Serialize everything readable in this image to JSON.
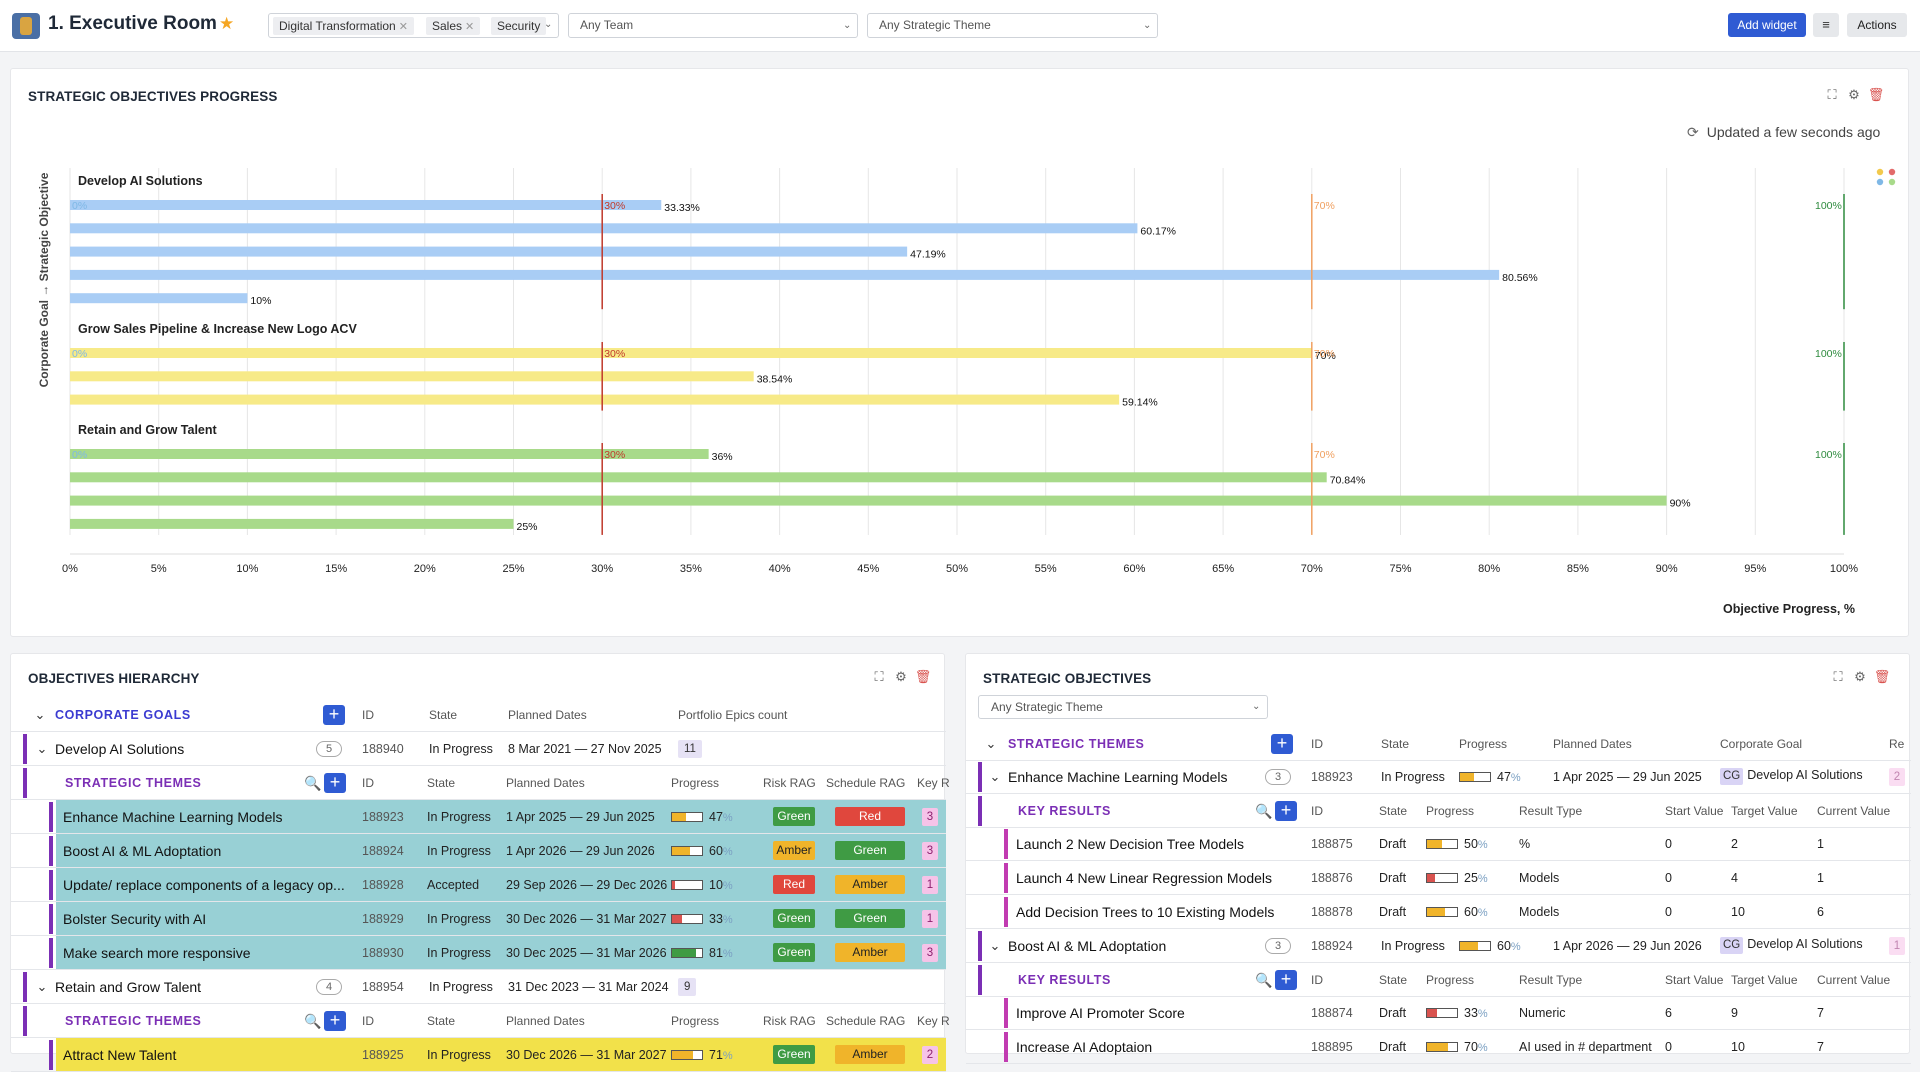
{
  "header": {
    "title": "1. Executive Room",
    "tags": [
      "Digital Transformation",
      "Sales",
      "Security"
    ],
    "team_select": "Any Team",
    "theme_select": "Any Strategic Theme",
    "add_widget": "Add widget",
    "actions": "Actions",
    "colors": {
      "primary": "#2f5bd3",
      "star": "#f5a623"
    }
  },
  "progress_widget": {
    "title": "STRATEGIC OBJECTIVES PROGRESS",
    "updated": "Updated a few seconds ago"
  },
  "chart_data": {
    "type": "bar",
    "orientation": "horizontal",
    "xlabel": "Objective Progress, %",
    "ylabel": "Corporate Goal → Strategic Objective",
    "xlim": [
      0,
      100
    ],
    "xticks": [
      0,
      5,
      10,
      15,
      20,
      25,
      30,
      35,
      40,
      45,
      50,
      55,
      60,
      65,
      70,
      75,
      80,
      85,
      90,
      95,
      100
    ],
    "xtick_labels": [
      "0%",
      "5%",
      "10%",
      "15%",
      "20%",
      "25%",
      "30%",
      "35%",
      "40%",
      "45%",
      "50%",
      "55%",
      "60%",
      "65%",
      "70%",
      "75%",
      "80%",
      "85%",
      "90%",
      "95%",
      "100%"
    ],
    "reference_lines": [
      {
        "value": 0,
        "label": "0%",
        "color": "#7fb8e6"
      },
      {
        "value": 30,
        "label": "30%",
        "color": "#c0392b"
      },
      {
        "value": 70,
        "label": "70%",
        "color": "#f0a060"
      },
      {
        "value": 100,
        "label": "100%",
        "color": "#2e8b3e"
      }
    ],
    "grid": true,
    "groups": [
      {
        "name": "Develop AI Solutions",
        "color": "#a9cdf5",
        "values": [
          33.33,
          60.17,
          47.19,
          80.56,
          10
        ],
        "labels": [
          "33.33%",
          "60.17%",
          "47.19%",
          "80.56%",
          "10%"
        ]
      },
      {
        "name": "Grow Sales Pipeline & Increase New Logo ACV",
        "color": "#f7ea88",
        "values": [
          70,
          38.54,
          59.14
        ],
        "labels": [
          "70%",
          "38.54%",
          "59.14%"
        ]
      },
      {
        "name": "Retain and Grow Talent",
        "color": "#a8da8a",
        "values": [
          36,
          70.84,
          90,
          25
        ],
        "labels": [
          "36%",
          "70.84%",
          "90%",
          "25%"
        ]
      }
    ]
  },
  "hierarchy": {
    "title": "OBJECTIVES HIERARCHY",
    "corporate_goals_label": "CORPORATE GOALS",
    "themes_label": "STRATEGIC THEMES",
    "goal_headers": [
      "ID",
      "State",
      "Planned Dates",
      "Portfolio Epics count"
    ],
    "theme_headers": [
      "ID",
      "State",
      "Planned Dates",
      "Progress",
      "Risk RAG",
      "Schedule RAG",
      "Key R"
    ],
    "goals": [
      {
        "name": "Develop AI Solutions",
        "count": "5",
        "id": "188940",
        "state": "In Progress",
        "dates": "8 Mar 2021 — 27 Nov 2025",
        "epics": "11",
        "themes": [
          {
            "name": "Enhance Machine Learning Models",
            "id": "188923",
            "state": "In Progress",
            "dates": "1 Apr 2025 — 29 Jun 2025",
            "progress": 47,
            "pct": "47",
            "risk": "Green",
            "schedule": "Red",
            "kr": "3"
          },
          {
            "name": "Boost AI & ML Adoptation",
            "id": "188924",
            "state": "In Progress",
            "dates": "1 Apr 2026 — 29 Jun 2026",
            "progress": 60,
            "pct": "60",
            "risk": "Amber",
            "schedule": "Green",
            "kr": "3"
          },
          {
            "name": "Update/ replace components of a legacy op...",
            "id": "188928",
            "state": "Accepted",
            "dates": "29 Sep 2026 — 29 Dec 2026",
            "progress": 10,
            "pct": "10",
            "risk": "Red",
            "schedule": "Amber",
            "kr": "1"
          },
          {
            "name": "Bolster Security with AI",
            "id": "188929",
            "state": "In Progress",
            "dates": "30 Dec 2026 — 31 Mar 2027",
            "progress": 33,
            "pct": "33",
            "risk": "Green",
            "schedule": "Green",
            "kr": "1"
          },
          {
            "name": "Make search more responsive",
            "id": "188930",
            "state": "In Progress",
            "dates": "30 Dec 2025 — 31 Mar 2026",
            "progress": 81,
            "pct": "81",
            "risk": "Green",
            "schedule": "Amber",
            "kr": "3"
          }
        ]
      },
      {
        "name": "Retain and Grow Talent",
        "count": "4",
        "id": "188954",
        "state": "In Progress",
        "dates": "31 Dec 2023 — 31 Mar 2024",
        "epics": "9",
        "themes": [
          {
            "name": "Attract New Talent",
            "id": "188925",
            "state": "In Progress",
            "dates": "30 Dec 2026 — 31 Mar 2027",
            "progress": 71,
            "pct": "71",
            "risk": "Green",
            "schedule": "Amber",
            "kr": "2"
          }
        ]
      }
    ]
  },
  "strategic": {
    "title": "STRATEGIC OBJECTIVES",
    "filter": "Any Strategic Theme",
    "themes_label": "STRATEGIC THEMES",
    "kr_label": "KEY RESULTS",
    "theme_headers": [
      "ID",
      "State",
      "Progress",
      "Planned Dates",
      "Corporate Goal",
      "Re"
    ],
    "kr_headers": [
      "ID",
      "State",
      "Progress",
      "Result Type",
      "Start Value",
      "Target Value",
      "Current Value"
    ],
    "themes": [
      {
        "name": "Enhance Machine Learning Models",
        "count": "3",
        "id": "188923",
        "state": "In Progress",
        "progress": 47,
        "pct": "47",
        "dates": "1 Apr 2025 — 29 Jun 2025",
        "cg_badge": "CG",
        "goal": "Develop AI Solutions",
        "extra": "2",
        "krs": [
          {
            "name": "Launch 2 New Decision Tree Models",
            "id": "188875",
            "state": "Draft",
            "progress": 50,
            "pct": "50",
            "type": "%",
            "start": "0",
            "target": "2",
            "current": "1"
          },
          {
            "name": "Launch 4 New Linear Regression Models",
            "id": "188876",
            "state": "Draft",
            "progress": 25,
            "pct": "25",
            "type": "Models",
            "start": "0",
            "target": "4",
            "current": "1"
          },
          {
            "name": "Add Decision Trees to 10 Existing Models",
            "id": "188878",
            "state": "Draft",
            "progress": 60,
            "pct": "60",
            "type": "Models",
            "start": "0",
            "target": "10",
            "current": "6"
          }
        ]
      },
      {
        "name": "Boost AI & ML Adoptation",
        "count": "3",
        "id": "188924",
        "state": "In Progress",
        "progress": 60,
        "pct": "60",
        "dates": "1 Apr 2026 — 29 Jun 2026",
        "cg_badge": "CG",
        "goal": "Develop AI Solutions",
        "extra": "1",
        "krs": [
          {
            "name": "Improve AI Promoter Score",
            "id": "188874",
            "state": "Draft",
            "progress": 33,
            "pct": "33",
            "type": "Numeric",
            "start": "6",
            "target": "9",
            "current": "7"
          },
          {
            "name": "Increase AI Adoptaion",
            "id": "188895",
            "state": "Draft",
            "progress": 70,
            "pct": "70",
            "type": "AI used in # department",
            "start": "0",
            "target": "10",
            "current": "7"
          }
        ]
      }
    ]
  }
}
